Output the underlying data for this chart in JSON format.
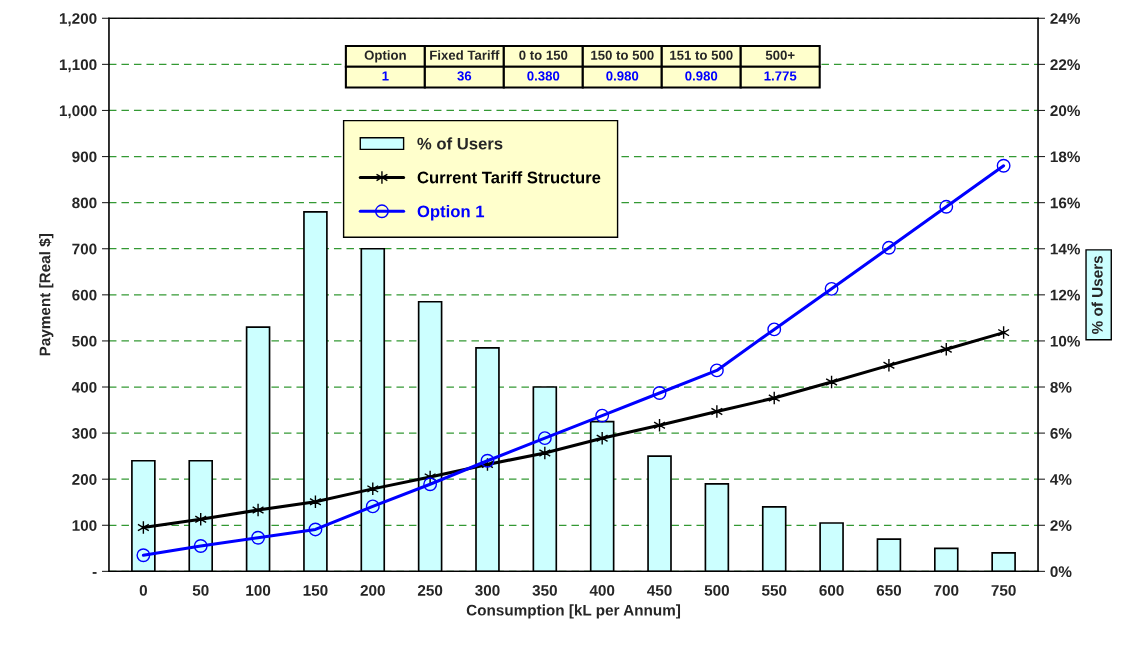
{
  "chart_data": {
    "type": "bar",
    "xlabel": "Consumption [kL per Annum]",
    "ylabel": "Payment [Real $]",
    "y2label": "% of Users",
    "categories": [
      "0",
      "50",
      "100",
      "150",
      "200",
      "250",
      "300",
      "350",
      "400",
      "450",
      "500",
      "550",
      "600",
      "650",
      "700",
      "750"
    ],
    "series": [
      {
        "name": "% of Users",
        "axis": "y2",
        "color": "#ccffff",
        "values": [
          4.8,
          4.8,
          10.6,
          15.6,
          14.0,
          11.7,
          9.7,
          8.0,
          6.5,
          5.0,
          3.8,
          2.8,
          2.1,
          1.4,
          1.0,
          0.8
        ]
      },
      {
        "name": "Current Tariff Structure",
        "type": "line",
        "color": "#000000",
        "marker": "cross",
        "values": [
          95,
          113,
          133,
          151,
          179,
          205,
          232,
          257,
          289,
          317,
          347,
          376,
          411,
          447,
          482,
          518
        ]
      },
      {
        "name": "Option 1",
        "type": "line",
        "color": "#0000ff",
        "marker": "circle",
        "values": [
          35,
          55,
          73,
          91,
          141,
          189,
          240,
          289,
          338,
          387,
          436,
          525,
          613,
          702,
          791,
          880
        ]
      }
    ],
    "ylim": [
      0,
      1200
    ],
    "yticks": [
      {
        "value": 0,
        "label": "-"
      },
      100,
      200,
      300,
      400,
      500,
      600,
      700,
      800,
      900,
      {
        "value": 1000,
        "label": "1,000"
      },
      {
        "value": 1100,
        "label": "1,100"
      },
      {
        "value": 1200,
        "label": "1,200"
      }
    ],
    "y2lim": [
      0,
      24
    ],
    "y2ticks": [
      {
        "value": 0,
        "label": "0%"
      },
      {
        "value": 2,
        "label": "2%"
      },
      {
        "value": 4,
        "label": "4%"
      },
      {
        "value": 6,
        "label": "6%"
      },
      {
        "value": 8,
        "label": "8%"
      },
      {
        "value": 10,
        "label": "10%"
      },
      {
        "value": 12,
        "label": "12%"
      },
      {
        "value": 14,
        "label": "14%"
      },
      {
        "value": 16,
        "label": "16%"
      },
      {
        "value": 18,
        "label": "18%"
      },
      {
        "value": 20,
        "label": "20%"
      },
      {
        "value": 22,
        "label": "22%"
      },
      {
        "value": 24,
        "label": "24%"
      }
    ],
    "grid": "y",
    "legend": "top",
    "annotations": [
      "Option",
      "Fixed Tariff",
      "0 to 150",
      "150 to 500",
      "151 to 500",
      "500+",
      "1",
      "36",
      "0.380",
      "0.980",
      "0.980",
      "1.775"
    ]
  }
}
